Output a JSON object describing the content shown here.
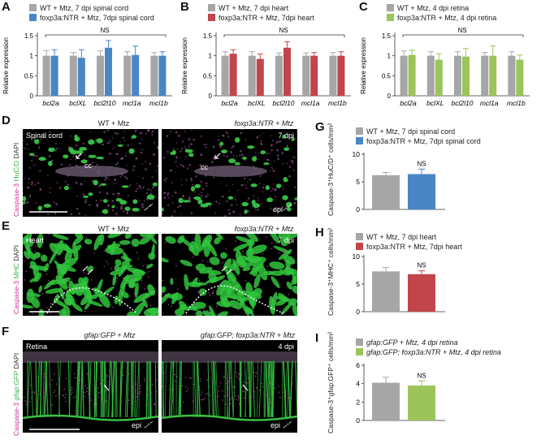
{
  "panels": {
    "A": {
      "letter": "A",
      "legend": [
        "WT + Mtz, 7 dpi spinal cord",
        "foxp3a:NTR + Mtz, 7dpi spinal cord"
      ],
      "colors": [
        "#a6a6a6",
        "#4a86c5"
      ]
    },
    "B": {
      "letter": "B",
      "legend": [
        "WT + Mtz, 7 dpi heart",
        "foxp3a:NTR + Mtz, 7dpi heart"
      ],
      "colors": [
        "#a6a6a6",
        "#c1454a"
      ]
    },
    "C": {
      "letter": "C",
      "legend": [
        "WT + Mtz, 4 dpi retina",
        "foxp3a:NTR + Mtz, 4 dpi retina"
      ],
      "colors": [
        "#a6a6a6",
        "#9cc45a"
      ]
    },
    "D": {
      "letter": "D",
      "left_title": "WT + Mtz",
      "right_title": "foxp3a:NTR + Mtz",
      "tissue": "Spinal cord",
      "dpi": "7 dpi",
      "cc": "cc",
      "epi": "epi",
      "side": [
        "Caspase-3",
        "HuC/D",
        "DAPI"
      ]
    },
    "E": {
      "letter": "E",
      "left_title": "WT + Mtz",
      "right_title": "foxp3a:NTR + Mtz",
      "tissue": "Heart",
      "dpi": "7 dpi",
      "side": [
        "Caspase-3",
        "MHC",
        "DAPI"
      ]
    },
    "F": {
      "letter": "F",
      "left_title": "gfap:GFP + Mtz",
      "right_title": "gfap:GFP; foxp3a:NTR + Mtz",
      "tissue": "Retina",
      "dpi": "4 dpi",
      "epi": "epi",
      "side": [
        "Caspase-3",
        "gfap:GFP",
        "DAPI"
      ]
    },
    "G": {
      "letter": "G",
      "legend": [
        "WT + Mtz, 7 dpi spinal cord",
        "foxp3a:NTR + Mtz, 7dpi spinal cord"
      ],
      "ylabel": "Caspase-3⁺HuC/D⁺ cells/mm²",
      "ns": "NS"
    },
    "H": {
      "letter": "H",
      "legend": [
        "WT + Mtz, 7 dpi heart",
        "foxp3a:NTR + Mtz, 7dpi heart"
      ],
      "ylabel": "Caspase-3⁺MHC⁺ cells/mm²",
      "ns": "NS"
    },
    "I": {
      "letter": "I",
      "legend": [
        "gfap:GFP + Mtz, 4 dpi retina",
        "gfap:GFP; foxp3a:NTR + Mtz, 4 dpi retina"
      ],
      "ylabel": "Caspase-3⁺gfap:GFP⁺ cells/mm²",
      "ns": "NS"
    }
  },
  "abc_axis": {
    "ylabel": "Relative expression",
    "ns": "NS",
    "ticks": [
      "0",
      "0.5",
      "1",
      "1.5"
    ]
  },
  "chart_data": [
    {
      "type": "bar",
      "panel": "A",
      "categories": [
        "bcl2a",
        "bclXL",
        "bcl2l10",
        "mcl1a",
        "mcl1b"
      ],
      "series": [
        {
          "name": "WT + Mtz, 7 dpi spinal cord",
          "values": [
            1.0,
            1.0,
            1.0,
            1.0,
            1.0
          ],
          "errors": [
            0.13,
            0.08,
            0.12,
            0.1,
            0.08
          ]
        },
        {
          "name": "foxp3a:NTR + Mtz, 7dpi spinal cord",
          "values": [
            1.0,
            0.95,
            1.2,
            1.02,
            1.0
          ],
          "errors": [
            0.15,
            0.2,
            0.18,
            0.22,
            0.1
          ]
        }
      ],
      "ylabel": "Relative expression",
      "ylim": [
        0,
        1.5
      ]
    },
    {
      "type": "bar",
      "panel": "B",
      "categories": [
        "bcl2a",
        "bclXL",
        "bcl2l10",
        "mcl1a",
        "mcl1b"
      ],
      "series": [
        {
          "name": "WT + Mtz, 7 dpi heart",
          "values": [
            1.0,
            1.0,
            1.0,
            1.0,
            1.0
          ],
          "errors": [
            0.1,
            0.1,
            0.07,
            0.07,
            0.08
          ]
        },
        {
          "name": "foxp3a:NTR + Mtz, 7dpi heart",
          "values": [
            1.05,
            0.92,
            1.2,
            1.0,
            1.0
          ],
          "errors": [
            0.1,
            0.12,
            0.15,
            0.08,
            0.1
          ]
        }
      ],
      "ylabel": "Relative expression",
      "ylim": [
        0,
        1.5
      ]
    },
    {
      "type": "bar",
      "panel": "C",
      "categories": [
        "bcl2a",
        "bclXL",
        "bcl2l10",
        "mcl1a",
        "mcl1b"
      ],
      "series": [
        {
          "name": "WT + Mtz, 4 dpi retina",
          "values": [
            1.0,
            1.0,
            1.0,
            1.0,
            1.0
          ],
          "errors": [
            0.12,
            0.1,
            0.1,
            0.08,
            0.1
          ]
        },
        {
          "name": "foxp3a:NTR + Mtz, 4 dpi retina",
          "values": [
            1.02,
            0.9,
            0.98,
            1.0,
            0.9
          ],
          "errors": [
            0.12,
            0.15,
            0.2,
            0.25,
            0.12
          ]
        }
      ],
      "ylabel": "Relative expression",
      "ylim": [
        0,
        1.5
      ]
    },
    {
      "type": "bar",
      "panel": "G",
      "categories": [
        "WT + Mtz",
        "foxp3a:NTR + Mtz"
      ],
      "values": [
        6.2,
        6.4
      ],
      "errors": [
        0.5,
        0.9
      ],
      "ylim": [
        0,
        10
      ],
      "yticks": [
        0,
        5,
        10
      ]
    },
    {
      "type": "bar",
      "panel": "H",
      "categories": [
        "WT + Mtz",
        "foxp3a:NTR + Mtz"
      ],
      "values": [
        7.3,
        6.8
      ],
      "errors": [
        0.7,
        0.6
      ],
      "ylim": [
        0,
        10
      ],
      "yticks": [
        0,
        5,
        10
      ]
    },
    {
      "type": "bar",
      "panel": "I",
      "categories": [
        "gfap:GFP + Mtz",
        "gfap:GFP; foxp3a:NTR + Mtz"
      ],
      "values": [
        4.1,
        3.8
      ],
      "errors": [
        0.6,
        0.5
      ],
      "ylim": [
        0,
        6
      ],
      "yticks": [
        0,
        2,
        4,
        6
      ]
    }
  ]
}
